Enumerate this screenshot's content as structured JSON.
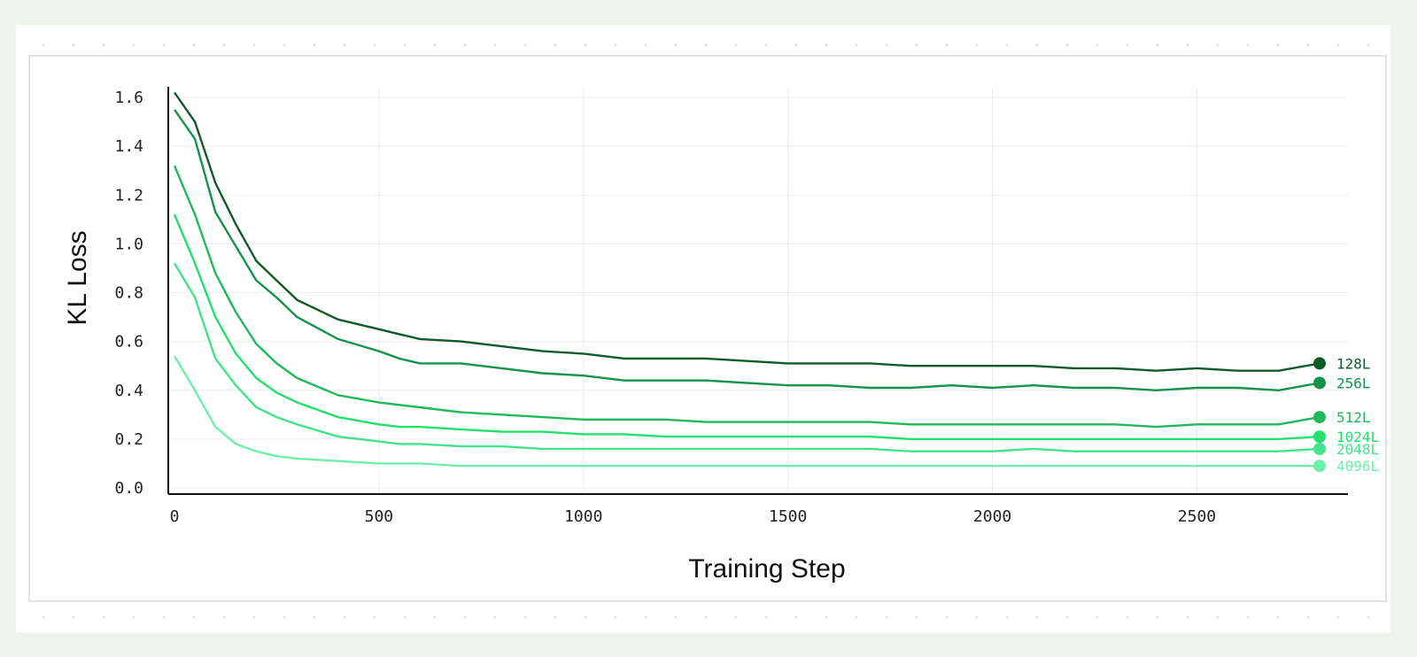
{
  "chart_data": {
    "type": "line",
    "xlabel": "Training Step",
    "ylabel": "KL Loss",
    "xlim": [
      0,
      2800
    ],
    "ylim": [
      0.0,
      1.6
    ],
    "xticks": [
      "0",
      "500",
      "1000",
      "1500",
      "2000",
      "2500"
    ],
    "yticks": [
      "0.0",
      "0.2",
      "0.4",
      "0.6",
      "0.8",
      "1.0",
      "1.2",
      "1.4",
      "1.6"
    ],
    "grid": true,
    "legend": "end-of-line labels (right)",
    "x": [
      0,
      50,
      100,
      150,
      200,
      250,
      300,
      400,
      500,
      550,
      600,
      700,
      800,
      900,
      1000,
      1100,
      1200,
      1300,
      1400,
      1500,
      1600,
      1700,
      1800,
      1900,
      2000,
      2100,
      2200,
      2300,
      2400,
      2500,
      2600,
      2700,
      2800
    ],
    "series": [
      {
        "name": "128L",
        "color": "#0f5a28",
        "values": [
          1.62,
          1.5,
          1.25,
          1.08,
          0.93,
          0.85,
          0.77,
          0.69,
          0.65,
          0.63,
          0.61,
          0.6,
          0.58,
          0.56,
          0.55,
          0.53,
          0.53,
          0.53,
          0.52,
          0.51,
          0.51,
          0.51,
          0.5,
          0.5,
          0.5,
          0.5,
          0.49,
          0.49,
          0.48,
          0.49,
          0.48,
          0.48,
          0.51
        ]
      },
      {
        "name": "256L",
        "color": "#16924a",
        "values": [
          1.55,
          1.43,
          1.13,
          0.99,
          0.85,
          0.78,
          0.7,
          0.61,
          0.56,
          0.53,
          0.51,
          0.51,
          0.49,
          0.47,
          0.46,
          0.44,
          0.44,
          0.44,
          0.43,
          0.42,
          0.42,
          0.41,
          0.41,
          0.42,
          0.41,
          0.42,
          0.41,
          0.41,
          0.4,
          0.41,
          0.41,
          0.4,
          0.43
        ]
      },
      {
        "name": "512L",
        "color": "#1fb85a",
        "values": [
          1.32,
          1.12,
          0.88,
          0.72,
          0.59,
          0.51,
          0.45,
          0.38,
          0.35,
          0.34,
          0.33,
          0.31,
          0.3,
          0.29,
          0.28,
          0.28,
          0.28,
          0.27,
          0.27,
          0.27,
          0.27,
          0.27,
          0.26,
          0.26,
          0.26,
          0.26,
          0.26,
          0.26,
          0.25,
          0.26,
          0.26,
          0.26,
          0.29
        ]
      },
      {
        "name": "1024L",
        "color": "#22e06c",
        "values": [
          1.12,
          0.92,
          0.7,
          0.55,
          0.45,
          0.39,
          0.35,
          0.29,
          0.26,
          0.25,
          0.25,
          0.24,
          0.23,
          0.23,
          0.22,
          0.22,
          0.21,
          0.21,
          0.21,
          0.21,
          0.21,
          0.21,
          0.2,
          0.2,
          0.2,
          0.2,
          0.2,
          0.2,
          0.2,
          0.2,
          0.2,
          0.2,
          0.21
        ]
      },
      {
        "name": "2048L",
        "color": "#44e28a",
        "values": [
          0.92,
          0.78,
          0.53,
          0.42,
          0.33,
          0.29,
          0.26,
          0.21,
          0.19,
          0.18,
          0.18,
          0.17,
          0.17,
          0.16,
          0.16,
          0.16,
          0.16,
          0.16,
          0.16,
          0.16,
          0.16,
          0.16,
          0.15,
          0.15,
          0.15,
          0.16,
          0.15,
          0.15,
          0.15,
          0.15,
          0.15,
          0.15,
          0.16
        ]
      },
      {
        "name": "4096L",
        "color": "#6ff0a8",
        "values": [
          0.54,
          0.4,
          0.25,
          0.18,
          0.15,
          0.13,
          0.12,
          0.11,
          0.1,
          0.1,
          0.1,
          0.09,
          0.09,
          0.09,
          0.09,
          0.09,
          0.09,
          0.09,
          0.09,
          0.09,
          0.09,
          0.09,
          0.09,
          0.09,
          0.09,
          0.09,
          0.09,
          0.09,
          0.09,
          0.09,
          0.09,
          0.09,
          0.09
        ]
      }
    ]
  }
}
